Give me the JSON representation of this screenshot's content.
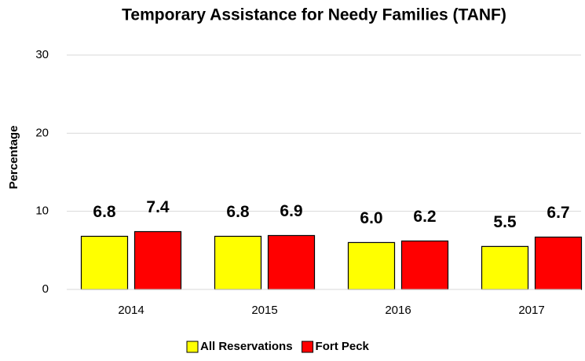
{
  "chart_data": {
    "type": "bar",
    "title": "Temporary Assistance for Needy Families (TANF)",
    "y_label": "Percentage",
    "categories": [
      "2014",
      "2015",
      "2016",
      "2017"
    ],
    "series": [
      {
        "name": "All Reservations",
        "color": "#ffff00",
        "values": [
          6.8,
          6.8,
          6.0,
          5.5
        ],
        "value_labels": [
          "6.8",
          "6.8",
          "6.0",
          "5.5"
        ]
      },
      {
        "name": "Fort Peck",
        "color": "#ff0000",
        "values": [
          7.4,
          6.9,
          6.2,
          6.7
        ],
        "value_labels": [
          "7.4",
          "6.9",
          "6.2",
          "6.7"
        ]
      }
    ],
    "ylim": [
      0,
      30
    ],
    "yticks": [
      0,
      10,
      20,
      30
    ],
    "grid": true,
    "legend": "bottom"
  }
}
